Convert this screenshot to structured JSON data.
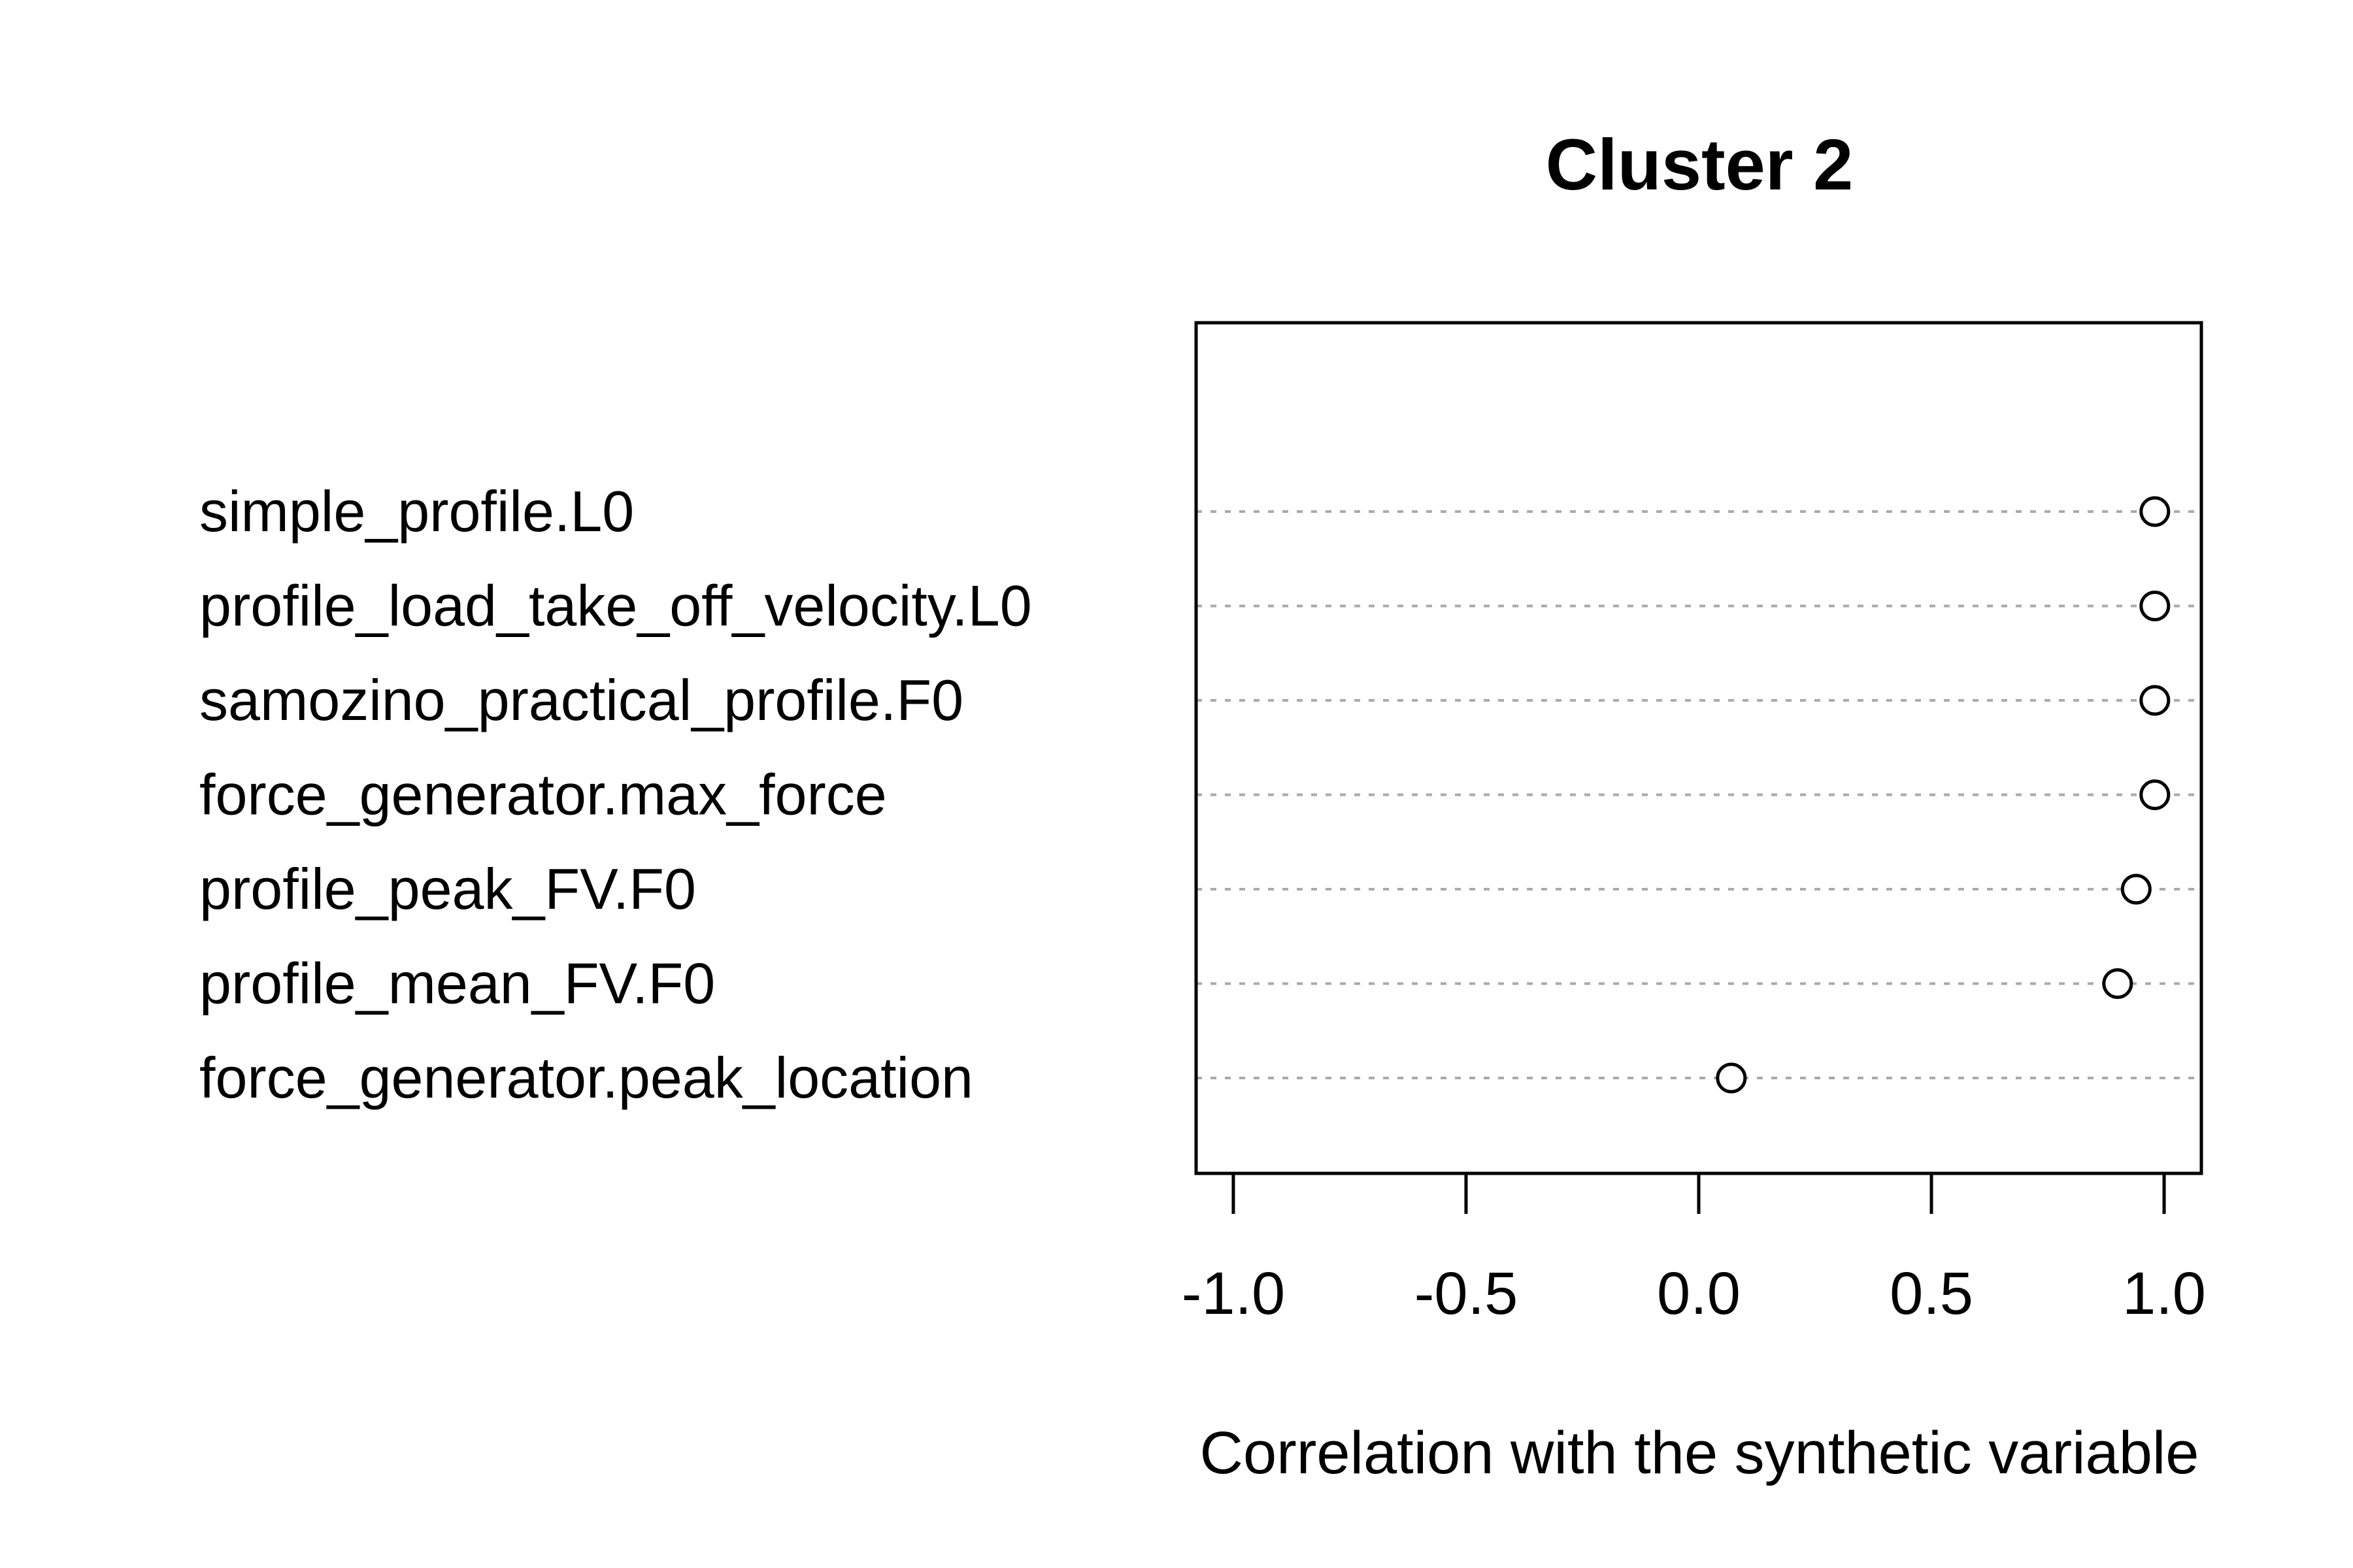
{
  "chart_data": {
    "type": "scatter",
    "title": "Cluster 2",
    "xlabel": "Correlation with the synthetic variable",
    "ylabel": "",
    "xlim": [
      -1.08,
      1.08
    ],
    "xticks": [
      -1.0,
      -0.5,
      0.0,
      0.5,
      1.0
    ],
    "xtick_labels": [
      "-1.0",
      "-0.5",
      "0.0",
      "0.5",
      "1.0"
    ],
    "grid": "dotted horizontal lines per category",
    "legend": "none",
    "categories": [
      "simple_profile.L0",
      "profile_load_take_off_velocity.L0",
      "samozino_practical_profile.F0",
      "force_generator.max_force",
      "profile_peak_FV.F0",
      "profile_mean_FV.F0",
      "force_generator.peak_location"
    ],
    "values": [
      0.98,
      0.98,
      0.98,
      0.98,
      0.94,
      0.9,
      0.07
    ],
    "colors": {
      "point": "#000000",
      "grid": "#aaaaaa",
      "axis": "#000000"
    }
  }
}
